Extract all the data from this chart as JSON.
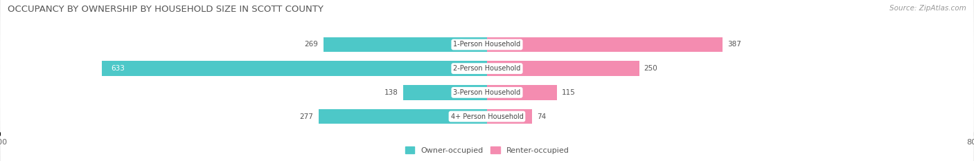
{
  "title": "OCCUPANCY BY OWNERSHIP BY HOUSEHOLD SIZE IN SCOTT COUNTY",
  "source": "Source: ZipAtlas.com",
  "categories": [
    "1-Person Household",
    "2-Person Household",
    "3-Person Household",
    "4+ Person Household"
  ],
  "owner_values": [
    269,
    633,
    138,
    277
  ],
  "renter_values": [
    387,
    250,
    115,
    74
  ],
  "owner_color": "#4DC8C8",
  "renter_color": "#F48CB0",
  "background_color": "#EBEBEB",
  "bar_background": "#FFFFFF",
  "axis_limit": 800,
  "title_fontsize": 9.5,
  "source_fontsize": 7.5,
  "label_fontsize": 7.5,
  "tick_fontsize": 8,
  "legend_fontsize": 8
}
